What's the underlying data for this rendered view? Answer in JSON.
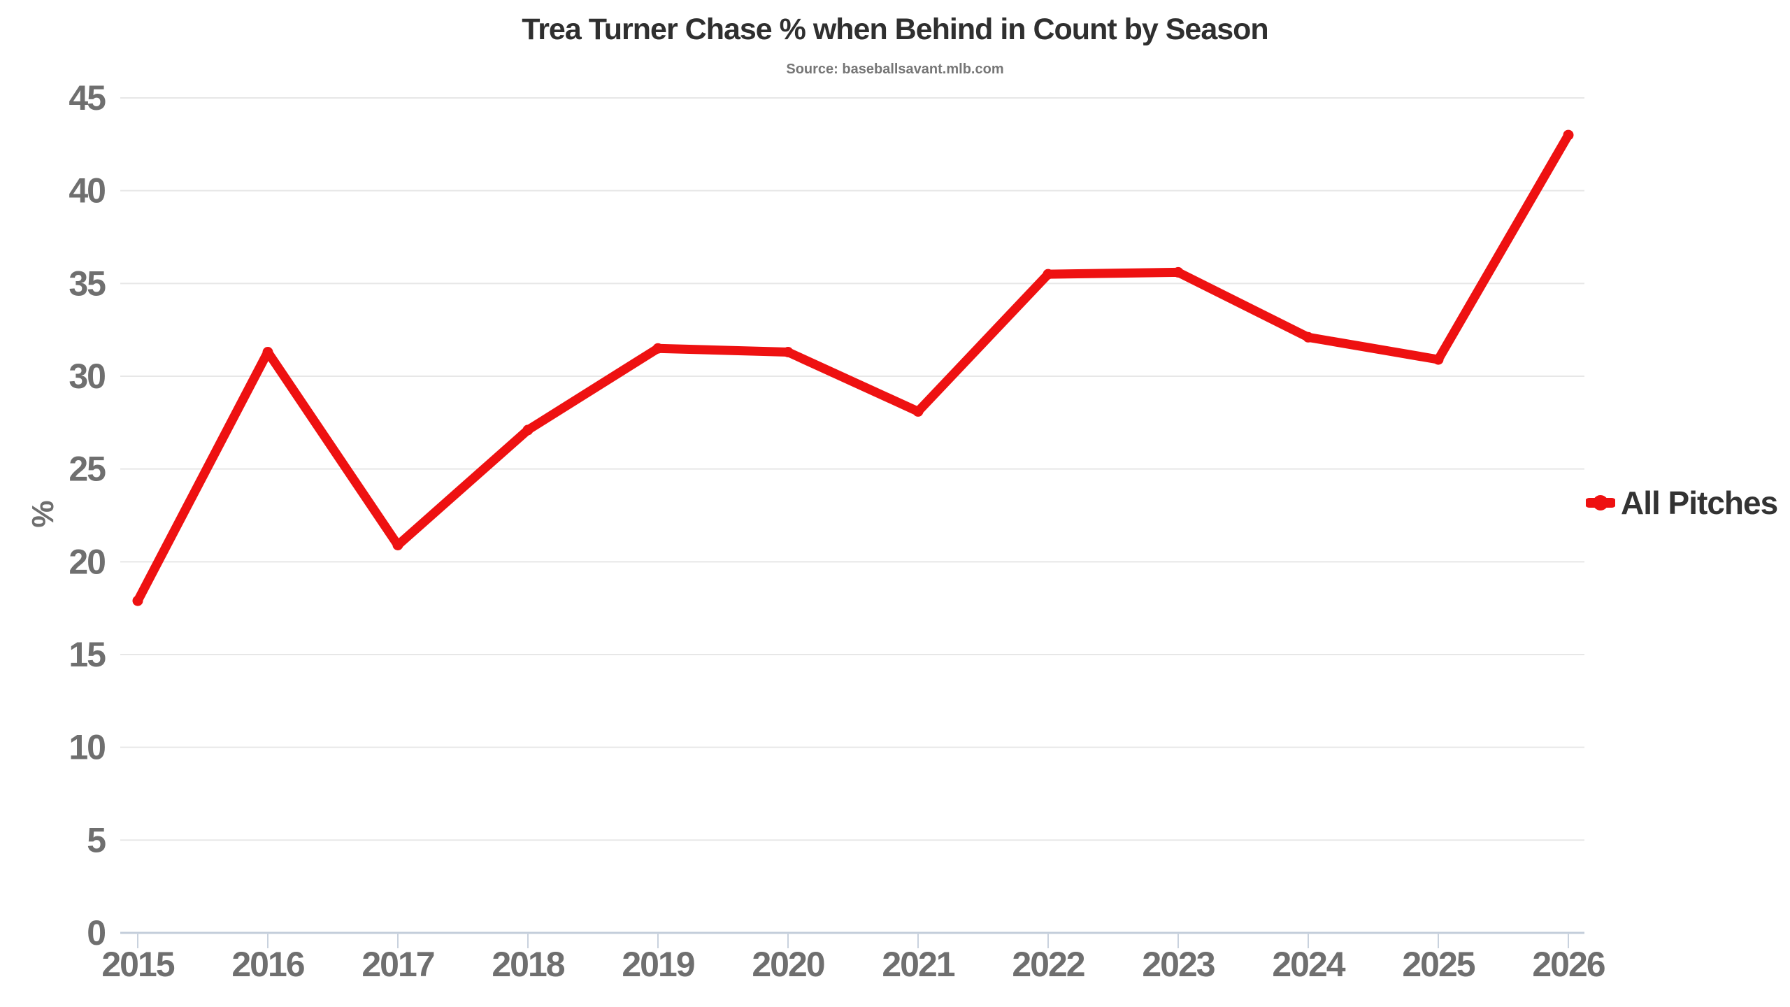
{
  "chart_data": {
    "type": "line",
    "title": "Trea Turner Chase % when Behind in Count by Season",
    "subtitle": "Source: baseballsavant.mlb.com",
    "categories": [
      "2015",
      "2016",
      "2017",
      "2018",
      "2019",
      "2020",
      "2021",
      "2022",
      "2023",
      "2024",
      "2025",
      "2026"
    ],
    "series": [
      {
        "name": "All Pitches",
        "color": "#ee1111",
        "values": [
          17.9,
          31.3,
          20.9,
          27.1,
          31.5,
          31.3,
          28.1,
          35.5,
          35.6,
          32.1,
          30.9,
          43.0
        ]
      }
    ],
    "xlabel": "",
    "ylabel": "%",
    "ylim": [
      0,
      45
    ],
    "ytick_step": 5,
    "grid": true,
    "legend_position": "right",
    "colors": {
      "background": "#ffffff",
      "series_red": "#ee1111",
      "title_text": "#2f2f2f",
      "subtitle_text": "#767676",
      "axis_label_text": "#6f6f6f",
      "legend_text": "#333333",
      "gridline": "#e7e7e7",
      "baseline": "#c3cdda",
      "tick_mark": "#c9d2de"
    }
  }
}
